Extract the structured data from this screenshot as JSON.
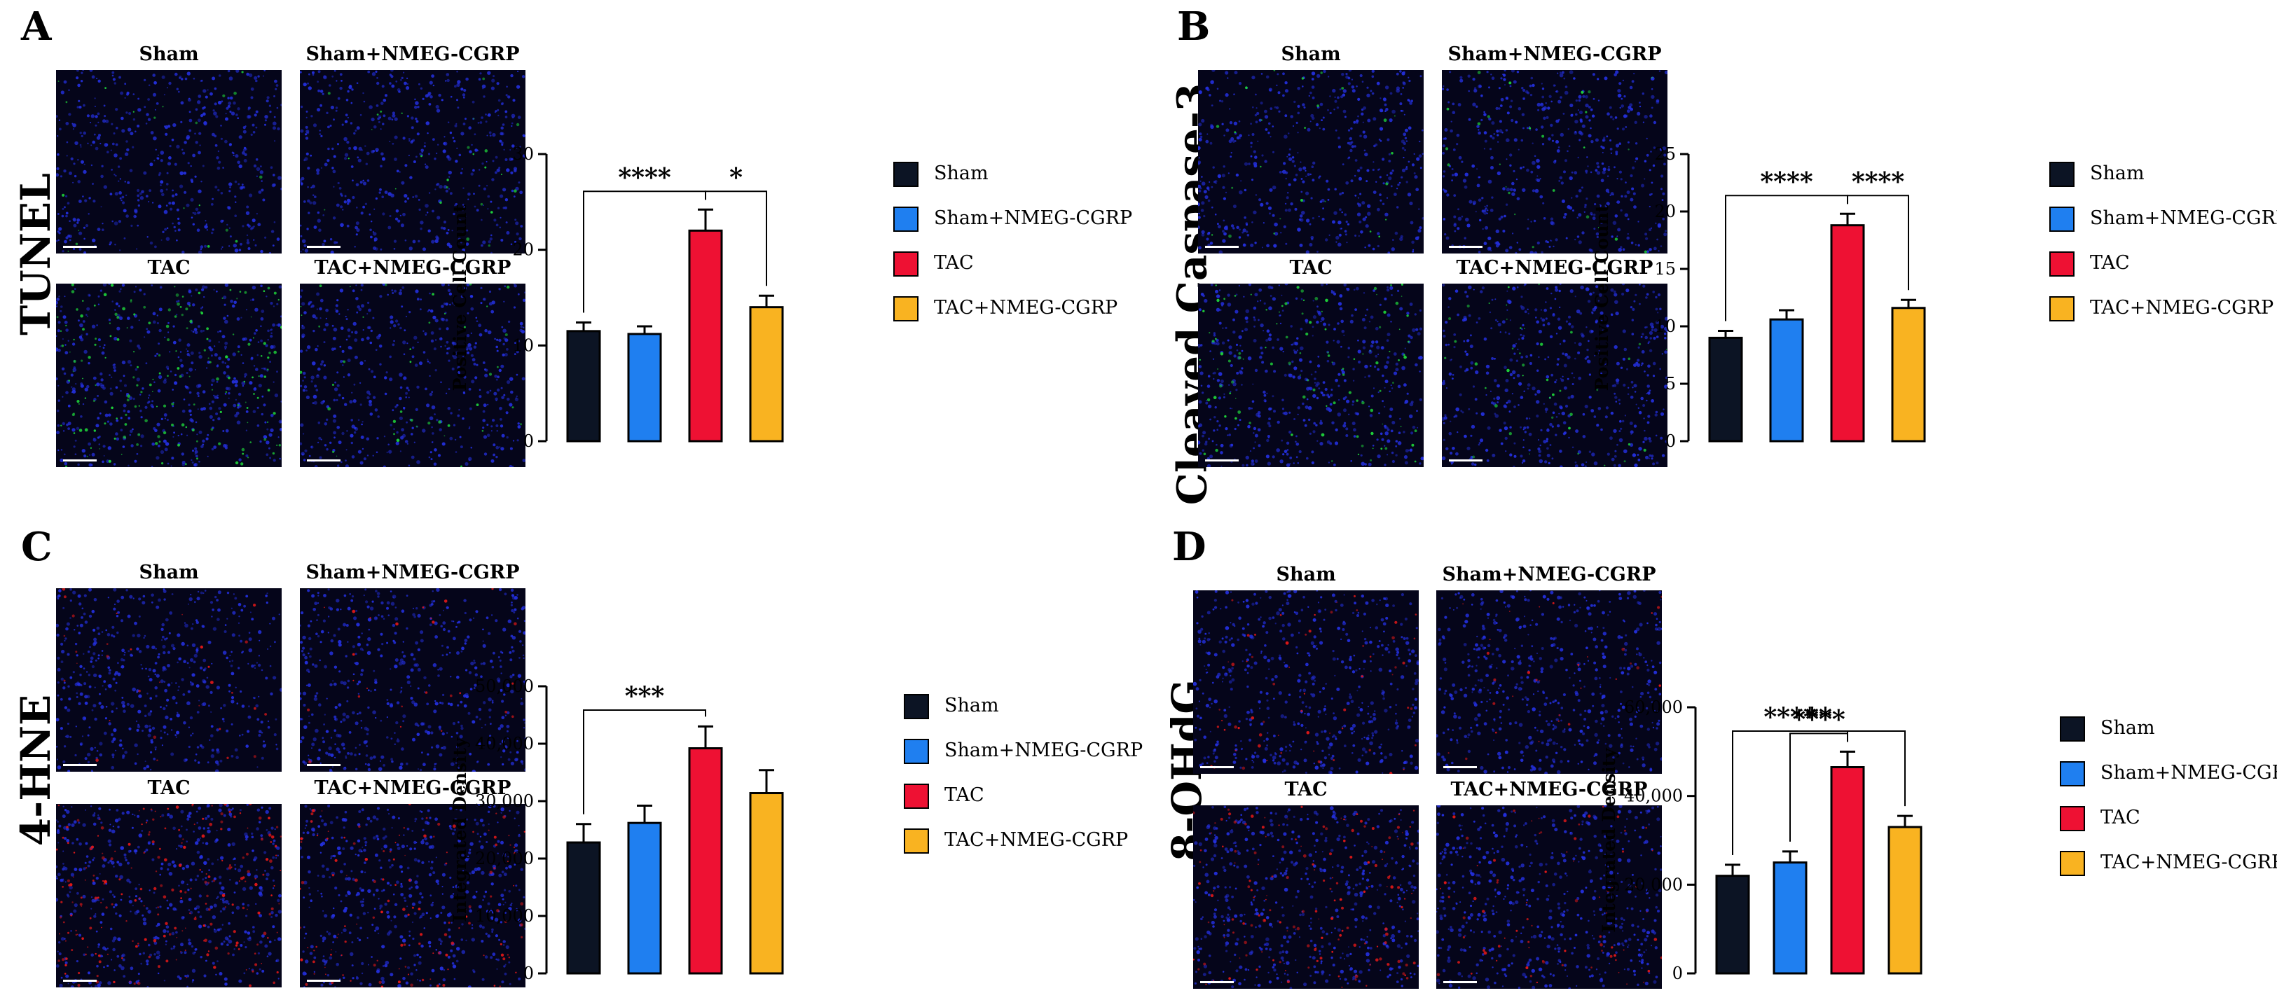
{
  "colors": {
    "sham": "#0c1424",
    "sham_nmeg": "#1f7ff0",
    "tac": "#ee1133",
    "tac_nmeg": "#f9b321",
    "tunel_stain": "#1ed03a",
    "red_stain": "#e01818",
    "nuclei": "#2430e0"
  },
  "panels": [
    {
      "letter": "A",
      "row_label": "TUNEL",
      "images": [
        {
          "title": "Sham",
          "stain": "green",
          "intensity": 0.04
        },
        {
          "title": "Sham+NMEG-CGRP",
          "stain": "green",
          "intensity": 0.05
        },
        {
          "title": "TAC",
          "stain": "green",
          "intensity": 0.35
        },
        {
          "title": "TAC+NMEG-CGRP",
          "stain": "green",
          "intensity": 0.08
        }
      ],
      "legend": [
        "Sham",
        "Sham+NMEG-CGRP",
        "TAC",
        "TAC+NMEG-CGRP"
      ]
    },
    {
      "letter": "B",
      "row_label": "Cleaved Caspase-3",
      "images": [
        {
          "title": "Sham",
          "stain": "green",
          "intensity": 0.05
        },
        {
          "title": "Sham+NMEG-CGRP",
          "stain": "green",
          "intensity": 0.05
        },
        {
          "title": "TAC",
          "stain": "green",
          "intensity": 0.2
        },
        {
          "title": "TAC+NMEG-CGRP",
          "stain": "green",
          "intensity": 0.08
        }
      ],
      "legend": [
        "Sham",
        "Sham+NMEG-CGRP",
        "TAC",
        "TAC+NMEG-CGRP"
      ]
    },
    {
      "letter": "C",
      "row_label": "4-HNE",
      "images": [
        {
          "title": "Sham",
          "stain": "red",
          "intensity": 0.06
        },
        {
          "title": "Sham+NMEG-CGRP",
          "stain": "red",
          "intensity": 0.05
        },
        {
          "title": "TAC",
          "stain": "red",
          "intensity": 0.45
        },
        {
          "title": "TAC+NMEG-CGRP",
          "stain": "red",
          "intensity": 0.25
        }
      ],
      "legend": [
        "Sham",
        "Sham+NMEG-CGRP",
        "TAC",
        "TAC+NMEG-CGRP"
      ]
    },
    {
      "letter": "D",
      "row_label": "8-OHdG",
      "images": [
        {
          "title": "Sham",
          "stain": "red",
          "intensity": 0.12
        },
        {
          "title": "Sham+NMEG-CGRP",
          "stain": "red",
          "intensity": 0.06
        },
        {
          "title": "TAC",
          "stain": "red",
          "intensity": 0.3
        },
        {
          "title": "TAC+NMEG-CGRP",
          "stain": "red",
          "intensity": 0.15
        }
      ],
      "legend": [
        "Sham",
        "Sham+NMEG-CGRP",
        "TAC",
        "TAC+NMEG-CGRP"
      ]
    }
  ],
  "chart_data": [
    {
      "panel": "A",
      "type": "bar",
      "categories": [
        "Sham",
        "Sham+NMEG-CGRP",
        "TAC",
        "TAC+NMEG-CGRP"
      ],
      "values": [
        11.5,
        11.2,
        22.0,
        14.0
      ],
      "errors": [
        0.9,
        0.8,
        2.2,
        1.2
      ],
      "ylabel": "Positive Cell Count",
      "ylim": [
        0,
        30
      ],
      "yticks": [
        0,
        10,
        20,
        30
      ],
      "ytick_labels": [
        "0",
        "10",
        "20",
        "30"
      ],
      "significance": [
        {
          "from": 0,
          "to": 2,
          "label": "****"
        },
        {
          "from": 2,
          "to": 3,
          "label": "*"
        }
      ],
      "legend_position": "right"
    },
    {
      "panel": "B",
      "type": "bar",
      "categories": [
        "Sham",
        "Sham+NMEG-CGRP",
        "TAC",
        "TAC+NMEG-CGRP"
      ],
      "values": [
        9.0,
        10.6,
        18.8,
        11.6
      ],
      "errors": [
        0.6,
        0.8,
        1.0,
        0.7
      ],
      "ylabel": "Positive Cell Count",
      "ylim": [
        0,
        25
      ],
      "yticks": [
        0,
        5,
        10,
        15,
        20,
        25
      ],
      "ytick_labels": [
        "0",
        "5",
        "10",
        "15",
        "20",
        "25"
      ],
      "significance": [
        {
          "from": 0,
          "to": 2,
          "label": "****"
        },
        {
          "from": 2,
          "to": 3,
          "label": "****"
        }
      ],
      "legend_position": "right"
    },
    {
      "panel": "C",
      "type": "bar",
      "categories": [
        "Sham",
        "Sham+NMEG-CGRP",
        "TAC",
        "TAC+NMEG-CGRP"
      ],
      "values": [
        22800,
        26200,
        39200,
        31400
      ],
      "errors": [
        3200,
        3000,
        3800,
        4000
      ],
      "ylabel": "Integrated Density",
      "ylim": [
        0,
        50000
      ],
      "yticks": [
        0,
        10000,
        20000,
        30000,
        40000,
        50000
      ],
      "ytick_labels": [
        "0",
        "10,000",
        "20,000",
        "30,000",
        "40,000",
        "50,000"
      ],
      "significance": [
        {
          "from": 0,
          "to": 2,
          "label": "***"
        }
      ],
      "legend_position": "right"
    },
    {
      "panel": "D",
      "type": "bar",
      "categories": [
        "Sham",
        "Sham+NMEG-CGRP",
        "TAC",
        "TAC+NMEG-CGRP"
      ],
      "values": [
        22000,
        25000,
        46500,
        33000
      ],
      "errors": [
        2500,
        2500,
        3500,
        2500
      ],
      "ylabel": "Integrated Density",
      "ylim": [
        0,
        60000
      ],
      "yticks": [
        0,
        20000,
        40000,
        60000
      ],
      "ytick_labels": [
        "0",
        "20,000",
        "40,000",
        "60,000"
      ],
      "significance": [
        {
          "from": 0,
          "to": 3,
          "label": "**"
        },
        {
          "from": 0,
          "to": 2,
          "label": "****"
        },
        {
          "from": 1,
          "to": 2,
          "label": "****"
        }
      ],
      "legend_position": "right"
    }
  ]
}
